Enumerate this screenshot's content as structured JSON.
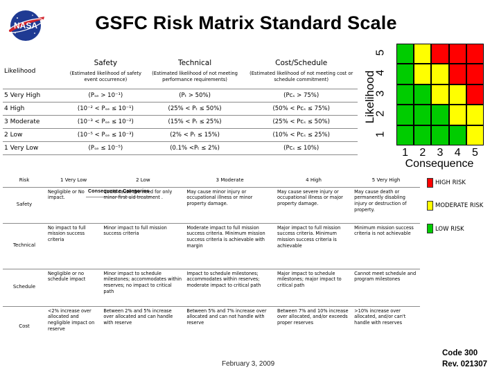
{
  "title": "GSFC Risk Matrix Standard Scale",
  "logo_text": "NASA",
  "likelihood_table": {
    "header": {
      "likelihood": "Likelihood",
      "safety": "Safety",
      "safety_sub": "(Estimated likelihood of safety event occurrence)",
      "technical": "Technical",
      "technical_sub": "(Estimated likelihood of not meeting performance requirements)",
      "cost": "Cost/Schedule",
      "cost_sub": "(Estimated likelihood of not meeting cost or schedule commitment)"
    },
    "rows": [
      {
        "level": "5   Very High",
        "safety": "(Pₛₑ > 10⁻¹)",
        "technical": "(Pₜ > 50%)",
        "cost": "(Pᴄₛ > 75%)"
      },
      {
        "level": "4   High",
        "safety": "(10⁻² < Pₛₑ ≤ 10⁻¹)",
        "technical": "(25% < Pₜ ≤ 50%)",
        "cost": "(50% < Pᴄₛ ≤ 75%)"
      },
      {
        "level": "3   Moderate",
        "safety": "(10⁻³ < Pₛₑ ≤ 10⁻²)",
        "technical": "(15% < Pₜ ≤ 25%)",
        "cost": "(25% < Pᴄₛ ≤ 50%)"
      },
      {
        "level": "2   Low",
        "safety": "(10⁻⁵ < Pₛₑ ≤ 10⁻³)",
        "technical": "(2% < Pₜ ≤ 15%)",
        "cost": "(10% < Pᴄₛ ≤ 25%)"
      },
      {
        "level": "1   Very Low",
        "safety": "(Pₛₑ ≤ 10⁻⁵)",
        "technical": "(0.1% <Pₜ ≤ 2%)",
        "cost": "(Pᴄₛ ≤ 10%)"
      }
    ]
  },
  "risk_matrix": {
    "y_title": "Likelihood",
    "x_title": "Consequence",
    "ticks": [
      "1",
      "2",
      "3",
      "4",
      "5"
    ],
    "colors": {
      "high": "#ff0000",
      "moderate": "#ffff00",
      "low": "#00cc00"
    },
    "grid_rows_top_to_bottom": [
      [
        "green",
        "yellow",
        "red",
        "red",
        "red"
      ],
      [
        "green",
        "yellow",
        "yellow",
        "red",
        "red"
      ],
      [
        "green",
        "green",
        "yellow",
        "yellow",
        "red"
      ],
      [
        "green",
        "green",
        "green",
        "yellow",
        "yellow"
      ],
      [
        "green",
        "green",
        "green",
        "green",
        "yellow"
      ]
    ]
  },
  "legend": {
    "high": "HIGH RISK",
    "moderate": "MODERATE RISK",
    "low": "LOW RISK"
  },
  "consequence_table": {
    "title": "Consequence Categories",
    "headers": [
      "Risk",
      "1  Very Low",
      "2  Low",
      "3  Moderate",
      "4  High",
      "5  Very High"
    ],
    "rows": [
      {
        "risk": "Safety",
        "cells": [
          "Negligible or No impact.",
          "Could cause the need for only minor first aid treatment .",
          "May cause minor injury or occupational illness or minor property damage.",
          "May cause severe injury or occupational illness or major property damage.",
          "May cause death or permanently disabling injury or destruction of property."
        ]
      },
      {
        "risk": "Technical",
        "cells": [
          "No impact to full mission success criteria",
          "Minor impact to full mission success criteria",
          "Moderate impact to full mission success criteria. Minimum mission success criteria is achievable with margin",
          "Major impact to full mission success criteria. Minimum mission success criteria is achievable",
          "Minimum mission success criteria is not achievable"
        ]
      },
      {
        "risk": "Schedule",
        "cells": [
          "Negligible or no schedule impact",
          "Minor impact to schedule milestones; accommodates within reserves; no impact to critical path",
          "Impact to schedule milestones; accommodates within reserves; moderate impact to critical path",
          "Major impact to schedule milestones; major impact to critical path",
          "Cannot meet schedule and program milestones"
        ]
      },
      {
        "risk": "Cost",
        "cells": [
          "<2% increase over allocated and negligible impact on reserve",
          "Between 2% and 5% increase over allocated and can handle with reserve",
          "Between 5% and 7% increase over allocated and can not handle with reserve",
          "Between 7% and 10% increase over allocated, and/or exceeds proper reserves",
          ">10% increase over allocated, and/or can't handle with reserves"
        ]
      }
    ]
  },
  "footer": {
    "date": "February 3, 2009",
    "code_line1": "Code 300",
    "code_line2": "Rev. 021307"
  }
}
